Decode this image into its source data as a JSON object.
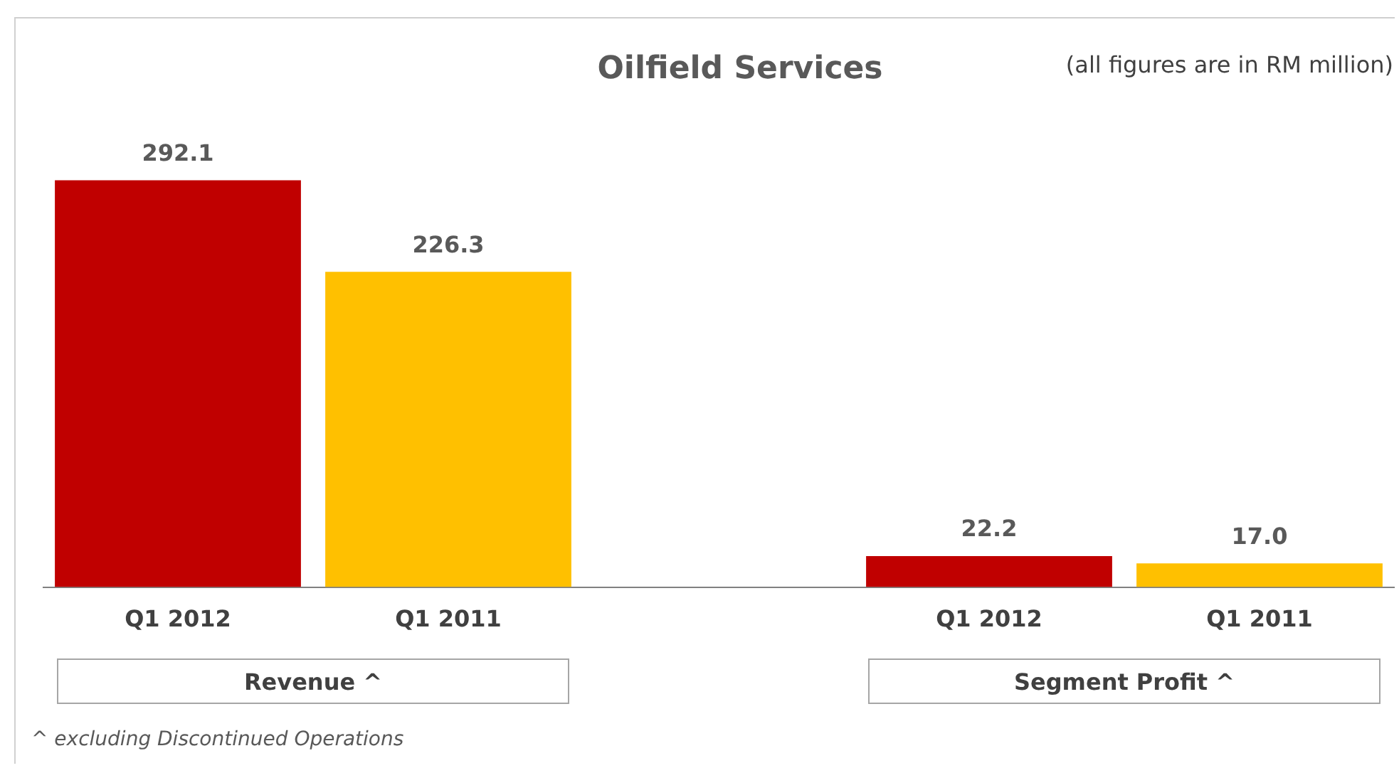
{
  "chart_data": {
    "type": "bar",
    "title": "Oilfield Services",
    "subtitle": "(all figures are in RM million)",
    "categories": [
      "Q1 2012",
      "Q1 2011",
      null,
      "Q1 2012",
      "Q1 2011"
    ],
    "values": [
      292.1,
      226.3,
      null,
      22.2,
      17.0
    ],
    "colors": [
      "#c00000",
      "#ffc000",
      null,
      "#c00000",
      "#ffc000"
    ],
    "value_labels": [
      "292.1",
      "226.3",
      null,
      "22.2",
      "17.0"
    ],
    "grid": false,
    "legend": false,
    "annotations": [
      "Revenue ^",
      "Segment Profit ^",
      "^ excluding Discontinued Operations"
    ]
  }
}
